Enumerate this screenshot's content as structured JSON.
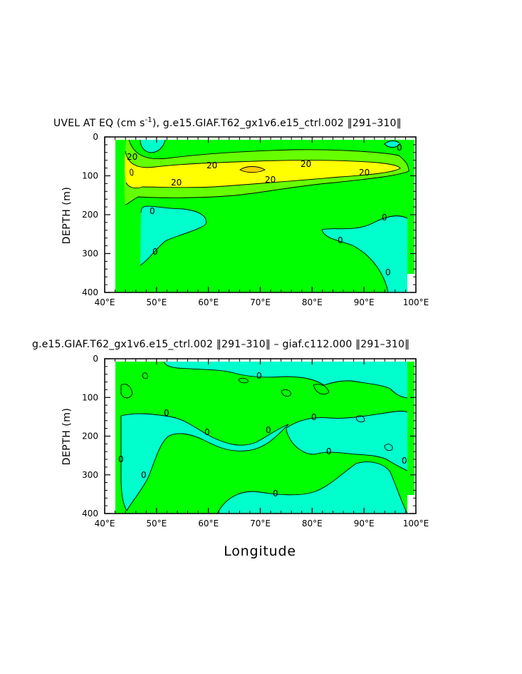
{
  "colors": {
    "green": "#00ff00",
    "light_green": "#66ff00",
    "cyan": "#00ffcc",
    "yellow": "#ffff00",
    "orange": "#ffcc00",
    "line": "#000000"
  },
  "chart_data": [
    {
      "type": "contour",
      "title_main": "UVEL AT EQ (cm s",
      "title_sup": "-1",
      "title_rest": "), g.e15.GIAF.T62_gx1v6.e15_ctrl.002 ‖291–310‖",
      "ylabel": "DEPTH (m)",
      "xlabel": "",
      "xlim": [
        40,
        100
      ],
      "ylim": [
        400,
        0
      ],
      "x_ticks": [
        "40°E",
        "50°E",
        "60°E",
        "70°E",
        "80°E",
        "90°E",
        "100°E"
      ],
      "y_ticks": [
        "0",
        "100",
        "200",
        "300",
        "400"
      ],
      "contour_labels": [
        "20",
        "20",
        "20",
        "20",
        "20",
        "0",
        "0",
        "0",
        "0",
        "0"
      ]
    },
    {
      "type": "contour",
      "title_main": "g.e15.GIAF.T62_gx1v6.e15_ctrl.002 ‖291–310‖ – giaf.c112.000 ‖291–310‖",
      "ylabel": "DEPTH (m)",
      "xlabel": "Longitude",
      "xlim": [
        40,
        100
      ],
      "ylim": [
        400,
        0
      ],
      "x_ticks": [
        "40°E",
        "50°E",
        "60°E",
        "70°E",
        "80°E",
        "90°E",
        "100°E"
      ],
      "y_ticks": [
        "0",
        "100",
        "200",
        "300",
        "400"
      ],
      "contour_labels": [
        "0",
        "0",
        "0",
        "0",
        "0",
        "0",
        "0",
        "0",
        "0",
        "0"
      ]
    }
  ]
}
